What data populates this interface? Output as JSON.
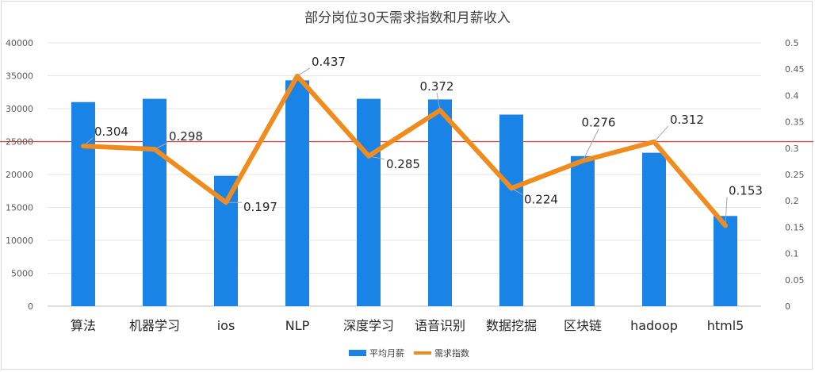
{
  "chart_data": {
    "type": "bar+line",
    "title": "部分岗位30天需求指数和月薪收入",
    "categories": [
      "算法",
      "机器学习",
      "ios",
      "NLP",
      "深度学习",
      "语音识别",
      "数据挖掘",
      "区块链",
      "hadoop",
      "html5"
    ],
    "series": [
      {
        "name": "平均月薪",
        "type": "bar",
        "axis": "left",
        "color": "#1a84e6",
        "values": [
          31000,
          31500,
          19800,
          34300,
          31500,
          31400,
          29100,
          22800,
          23300,
          13700
        ]
      },
      {
        "name": "需求指数",
        "type": "line",
        "axis": "right",
        "color": "#f08c1e",
        "values": [
          0.304,
          0.298,
          0.197,
          0.437,
          0.285,
          0.372,
          0.224,
          0.276,
          0.312,
          0.153
        ],
        "labels": [
          "0.304",
          "0.298",
          "0.197",
          "0.437",
          "0.285",
          "0.372",
          "0.224",
          "0.276",
          "0.312",
          "0.153"
        ]
      }
    ],
    "y_left": {
      "ylim": [
        0,
        40000
      ],
      "ticks": [
        "0",
        "5000",
        "10000",
        "15000",
        "20000",
        "25000",
        "30000",
        "35000",
        "40000"
      ]
    },
    "y_right": {
      "ylim": [
        0,
        0.5
      ],
      "ticks": [
        "0",
        "0.05",
        "0.1",
        "0.15",
        "0.2",
        "0.25",
        "0.3",
        "0.35",
        "0.4",
        "0.45",
        "0.5"
      ]
    },
    "reference_line": {
      "axis": "left",
      "value": 25000,
      "color": "#e03c3c"
    },
    "gridlines": true,
    "legend_position": "bottom"
  }
}
